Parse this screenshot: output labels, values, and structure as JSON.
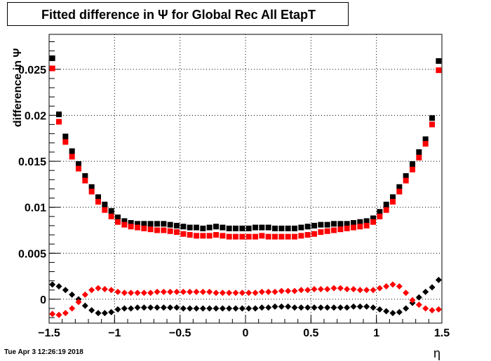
{
  "chart_data": {
    "type": "scatter",
    "title": "Fitted difference in  Ψ  for Global Rec All EtapT",
    "xlabel": "η",
    "ylabel": "difference in  Ψ",
    "xlim": [
      -1.5,
      1.5
    ],
    "ylim": [
      -0.0026,
      0.0288
    ],
    "xticks": [
      {
        "value": -1.5,
        "label": "−1.5"
      },
      {
        "value": -1.0,
        "label": "−1"
      },
      {
        "value": -0.5,
        "label": "−0.5"
      },
      {
        "value": 0.0,
        "label": "0"
      },
      {
        "value": 0.5,
        "label": "0.5"
      },
      {
        "value": 1.0,
        "label": "1"
      },
      {
        "value": 1.5,
        "label": "1.5"
      }
    ],
    "yticks": [
      {
        "value": 0.0,
        "label": "0"
      },
      {
        "value": 0.005,
        "label": "0.005"
      },
      {
        "value": 0.01,
        "label": "0.01"
      },
      {
        "value": 0.015,
        "label": "0.015"
      },
      {
        "value": 0.02,
        "label": "0.02"
      },
      {
        "value": 0.025,
        "label": "0.025"
      }
    ],
    "grid": true,
    "x": [
      -1.475,
      -1.425,
      -1.375,
      -1.325,
      -1.275,
      -1.225,
      -1.175,
      -1.125,
      -1.075,
      -1.025,
      -0.975,
      -0.925,
      -0.875,
      -0.825,
      -0.775,
      -0.725,
      -0.675,
      -0.625,
      -0.575,
      -0.525,
      -0.475,
      -0.425,
      -0.375,
      -0.325,
      -0.275,
      -0.225,
      -0.175,
      -0.125,
      -0.075,
      -0.025,
      0.025,
      0.075,
      0.125,
      0.175,
      0.225,
      0.275,
      0.325,
      0.375,
      0.425,
      0.475,
      0.525,
      0.575,
      0.625,
      0.675,
      0.725,
      0.775,
      0.825,
      0.875,
      0.925,
      0.975,
      1.025,
      1.075,
      1.125,
      1.175,
      1.225,
      1.275,
      1.325,
      1.375,
      1.425,
      1.475
    ],
    "series": [
      {
        "marker": "square",
        "color": "#000000",
        "values": [
          0.0262,
          0.0201,
          0.0177,
          0.0161,
          0.0147,
          0.0134,
          0.0122,
          0.0111,
          0.0103,
          0.0096,
          0.0089,
          0.0085,
          0.0083,
          0.0082,
          0.0082,
          0.0082,
          0.0082,
          0.0082,
          0.0081,
          0.008,
          0.0079,
          0.0078,
          0.0078,
          0.0077,
          0.0078,
          0.0079,
          0.0078,
          0.0077,
          0.0077,
          0.0077,
          0.0077,
          0.0078,
          0.0078,
          0.0078,
          0.0077,
          0.0077,
          0.0077,
          0.0077,
          0.0078,
          0.0079,
          0.008,
          0.0081,
          0.0081,
          0.0082,
          0.0082,
          0.0082,
          0.0083,
          0.0084,
          0.0085,
          0.0088,
          0.0095,
          0.0103,
          0.0111,
          0.0122,
          0.0134,
          0.0147,
          0.016,
          0.0174,
          0.0197,
          0.0259
        ]
      },
      {
        "marker": "square",
        "color": "#ff0000",
        "values": [
          0.0251,
          0.0193,
          0.0171,
          0.0155,
          0.0142,
          0.0129,
          0.0117,
          0.0106,
          0.0097,
          0.009,
          0.0084,
          0.0081,
          0.0079,
          0.0078,
          0.0077,
          0.0076,
          0.0075,
          0.0075,
          0.0074,
          0.0073,
          0.0071,
          0.007,
          0.0069,
          0.0069,
          0.0069,
          0.007,
          0.0069,
          0.0068,
          0.0068,
          0.0068,
          0.0068,
          0.0068,
          0.0069,
          0.0068,
          0.0068,
          0.0068,
          0.0068,
          0.0068,
          0.0069,
          0.007,
          0.0071,
          0.0073,
          0.0074,
          0.0075,
          0.0076,
          0.0077,
          0.0078,
          0.0079,
          0.008,
          0.0084,
          0.009,
          0.0097,
          0.0106,
          0.0117,
          0.0129,
          0.0141,
          0.0154,
          0.0169,
          0.019,
          0.0249
        ]
      },
      {
        "marker": "diamond",
        "color": "#000000",
        "values": [
          0.0016,
          0.0014,
          0.001,
          0.0005,
          0.0,
          -0.0007,
          -0.0012,
          -0.0015,
          -0.0015,
          -0.0014,
          -0.0011,
          -0.001,
          -0.001,
          -0.0009,
          -0.0009,
          -0.0009,
          -0.0009,
          -0.0009,
          -0.0009,
          -0.0009,
          -0.001,
          -0.001,
          -0.001,
          -0.001,
          -0.001,
          -0.001,
          -0.001,
          -0.001,
          -0.001,
          -0.001,
          -0.001,
          -0.001,
          -0.0009,
          -0.0009,
          -0.0008,
          -0.0008,
          -0.0008,
          -0.0009,
          -0.0009,
          -0.0009,
          -0.0009,
          -0.0009,
          -0.0009,
          -0.0009,
          -0.0009,
          -0.0009,
          -0.0008,
          -0.0008,
          -0.0008,
          -0.0009,
          -0.0011,
          -0.0013,
          -0.0015,
          -0.0014,
          -0.001,
          -0.0004,
          0.0002,
          0.0008,
          0.0013,
          0.0021
        ]
      },
      {
        "marker": "diamond",
        "color": "#ff0000",
        "values": [
          -0.0016,
          -0.0017,
          -0.0015,
          -0.001,
          -0.0003,
          0.0005,
          0.001,
          0.0012,
          0.0011,
          0.001,
          0.0008,
          0.0007,
          0.0007,
          0.0007,
          0.0007,
          0.0007,
          0.0008,
          0.0008,
          0.0008,
          0.0008,
          0.0008,
          0.0008,
          0.0008,
          0.0008,
          0.0008,
          0.0007,
          0.0007,
          0.0007,
          0.0007,
          0.0007,
          0.0007,
          0.0007,
          0.0008,
          0.0008,
          0.0008,
          0.0009,
          0.0009,
          0.0009,
          0.001,
          0.001,
          0.0011,
          0.0011,
          0.0011,
          0.0012,
          0.0012,
          0.0011,
          0.0011,
          0.001,
          0.001,
          0.001,
          0.0012,
          0.0014,
          0.0016,
          0.0014,
          0.0007,
          -0.0001,
          -0.0006,
          -0.001,
          -0.0012,
          -0.0011
        ]
      }
    ]
  },
  "footer": {
    "timestamp": "Tue Apr  3 12:26:19 2018"
  }
}
